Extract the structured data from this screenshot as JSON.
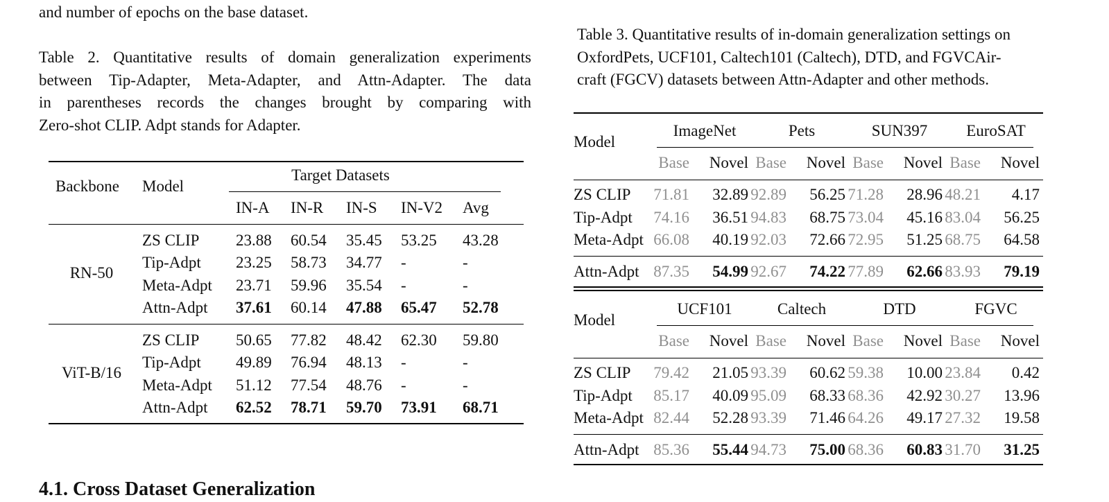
{
  "top_line": "and number of epochs on the base dataset.",
  "table2": {
    "caption_lines": [
      "Table 2. Quantitative results of domain generalization experiments",
      "between Tip-Adapter, Meta-Adapter, and Attn-Adapter. The data",
      "in parentheses records the changes brought by comparing with",
      "Zero-shot CLIP. Adpt stands for Adapter."
    ],
    "header": {
      "backbone": "Backbone",
      "model": "Model",
      "group": "Target Datasets",
      "columns": [
        "IN-A",
        "IN-R",
        "IN-S",
        "IN-V2",
        "Avg"
      ]
    },
    "groups": [
      {
        "backbone": "RN-50",
        "rows": [
          {
            "model": "ZS CLIP",
            "values": [
              "23.88",
              "60.54",
              "35.45",
              "53.25",
              "43.28"
            ],
            "bold": [
              false,
              false,
              false,
              false,
              false
            ]
          },
          {
            "model": "Tip-Adpt",
            "values": [
              "23.25",
              "58.73",
              "34.77",
              "-",
              "-"
            ],
            "bold": [
              false,
              false,
              false,
              false,
              false
            ]
          },
          {
            "model": "Meta-Adpt",
            "values": [
              "23.71",
              "59.96",
              "35.54",
              "-",
              "-"
            ],
            "bold": [
              false,
              false,
              false,
              false,
              false
            ]
          },
          {
            "model": "Attn-Adpt",
            "values": [
              "37.61",
              "60.14",
              "47.88",
              "65.47",
              "52.78"
            ],
            "bold": [
              true,
              false,
              true,
              true,
              true
            ]
          }
        ]
      },
      {
        "backbone": "ViT-B/16",
        "rows": [
          {
            "model": "ZS CLIP",
            "values": [
              "50.65",
              "77.82",
              "48.42",
              "62.30",
              "59.80"
            ],
            "bold": [
              false,
              false,
              false,
              false,
              false
            ]
          },
          {
            "model": "Tip-Adpt",
            "values": [
              "49.89",
              "76.94",
              "48.13",
              "-",
              "-"
            ],
            "bold": [
              false,
              false,
              false,
              false,
              false
            ]
          },
          {
            "model": "Meta-Adpt",
            "values": [
              "51.12",
              "77.54",
              "48.76",
              "-",
              "-"
            ],
            "bold": [
              false,
              false,
              false,
              false,
              false
            ]
          },
          {
            "model": "Attn-Adpt",
            "values": [
              "62.52",
              "78.71",
              "59.70",
              "73.91",
              "68.71"
            ],
            "bold": [
              true,
              true,
              true,
              true,
              true
            ]
          }
        ]
      }
    ]
  },
  "section_heading": "4.1. Cross Dataset Generalization",
  "table3": {
    "caption_lines": [
      "Table 3. Quantitative results of in-domain generalization settings on",
      "OxfordPets, UCF101, Caltech101 (Caltech), DTD, and FGVCAir-",
      "craft (FGCV) datasets between Attn-Adapter and other methods."
    ],
    "sub_labels": {
      "base": "Base",
      "novel": "Novel"
    },
    "blocks": [
      {
        "model_label": "Model",
        "datasets": [
          "ImageNet",
          "Pets",
          "SUN397",
          "EuroSAT"
        ],
        "rows": [
          {
            "model": "ZS CLIP",
            "values": [
              "71.81",
              "32.89",
              "92.89",
              "56.25",
              "71.28",
              "28.96",
              "48.21",
              "4.17"
            ]
          },
          {
            "model": "Tip-Adpt",
            "values": [
              "74.16",
              "36.51",
              "94.83",
              "68.75",
              "73.04",
              "45.16",
              "83.04",
              "56.25"
            ]
          },
          {
            "model": "Meta-Adpt",
            "values": [
              "66.08",
              "40.19",
              "92.03",
              "72.66",
              "72.95",
              "51.25",
              "68.75",
              "64.58"
            ]
          }
        ],
        "final_row": {
          "model": "Attn-Adpt",
          "values": [
            "87.35",
            "54.99",
            "92.67",
            "74.22",
            "77.89",
            "62.66",
            "83.93",
            "79.19"
          ]
        }
      },
      {
        "model_label": "Model",
        "datasets": [
          "UCF101",
          "Caltech",
          "DTD",
          "FGVC"
        ],
        "rows": [
          {
            "model": "ZS CLIP",
            "values": [
              "79.42",
              "21.05",
              "93.39",
              "60.62",
              "59.38",
              "10.00",
              "23.84",
              "0.42"
            ]
          },
          {
            "model": "Tip-Adpt",
            "values": [
              "85.17",
              "40.09",
              "95.09",
              "68.33",
              "68.36",
              "42.92",
              "30.27",
              "13.96"
            ]
          },
          {
            "model": "Meta-Adpt",
            "values": [
              "82.44",
              "52.28",
              "93.39",
              "71.46",
              "64.26",
              "49.17",
              "27.32",
              "19.58"
            ]
          }
        ],
        "final_row": {
          "model": "Attn-Adpt",
          "values": [
            "85.36",
            "55.44",
            "94.73",
            "75.00",
            "68.36",
            "60.83",
            "31.70",
            "31.25"
          ]
        }
      }
    ]
  },
  "colors": {
    "text": "#111111",
    "base_gray": "#8f8f8f",
    "rule": "#000000"
  }
}
